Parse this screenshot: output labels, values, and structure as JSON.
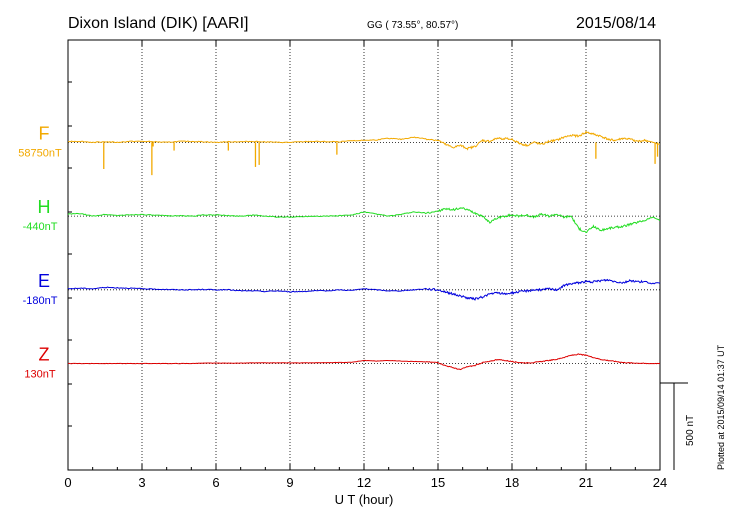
{
  "header": {
    "station": "Dixon Island (DIK)  [AARI]",
    "coords": "GG ( 73.55°,  80.57°)",
    "date": "2015/08/14"
  },
  "plotted_note": "Plotted at 2015/09/14 01:37 UT",
  "scale_label": "500 nT",
  "colors": {
    "F": "#f2a900",
    "H": "#22dd22",
    "E": "#0000dd",
    "Z": "#dd0000"
  },
  "chart_data": {
    "type": "line",
    "title": "",
    "xlabel": "U T (hour)",
    "ylabel": "",
    "xlim": [
      0,
      24
    ],
    "ylim_nT": [
      -1600,
      500
    ],
    "x_ticks": [
      0,
      3,
      6,
      9,
      12,
      15,
      18,
      21,
      24
    ],
    "x_tick_labels": [
      "0",
      "3",
      "6",
      "9",
      "12",
      "15",
      "18",
      "21",
      "24"
    ],
    "grid": true,
    "scale_bar_nT": 500,
    "series": [
      {
        "name": "F",
        "baseline": "58750nT",
        "offset_nT": 0,
        "x": [
          0,
          0.5,
          1,
          1.5,
          2,
          2.5,
          3,
          3.5,
          4,
          4.5,
          5,
          5.5,
          6,
          6.5,
          7,
          7.5,
          8,
          8.5,
          9,
          9.5,
          10,
          10.5,
          11,
          11.5,
          12,
          12.5,
          13,
          13.5,
          14,
          14.5,
          15,
          15.3,
          15.6,
          15.9,
          16.2,
          16.5,
          16.8,
          17.1,
          17.4,
          17.7,
          18,
          18.3,
          18.6,
          18.9,
          19.2,
          19.5,
          19.8,
          20.1,
          20.4,
          20.7,
          21,
          21.3,
          21.6,
          21.9,
          22.2,
          22.5,
          22.8,
          23.1,
          23.4,
          23.7,
          24
        ],
        "values": [
          5,
          5,
          0,
          3,
          0,
          5,
          5,
          3,
          0,
          5,
          5,
          3,
          0,
          3,
          3,
          5,
          3,
          0,
          0,
          3,
          5,
          3,
          3,
          8,
          10,
          12,
          20,
          15,
          25,
          18,
          10,
          -10,
          -25,
          -15,
          -30,
          -20,
          10,
          5,
          20,
          18,
          15,
          -5,
          -15,
          0,
          -10,
          5,
          10,
          25,
          35,
          30,
          50,
          40,
          30,
          15,
          10,
          20,
          15,
          5,
          10,
          0,
          -10
        ],
        "spikes": [
          {
            "x": 1.45,
            "value": -130
          },
          {
            "x": 3.4,
            "value": -160
          },
          {
            "x": 3.45,
            "value": -20
          },
          {
            "x": 4.3,
            "value": -40
          },
          {
            "x": 6.5,
            "value": -40
          },
          {
            "x": 7.6,
            "value": -120
          },
          {
            "x": 7.75,
            "value": -110
          },
          {
            "x": 10.9,
            "value": -60
          },
          {
            "x": 21.4,
            "value": -80
          },
          {
            "x": 23.8,
            "value": -105
          },
          {
            "x": 23.9,
            "value": -70
          }
        ]
      },
      {
        "name": "H",
        "baseline": "-440nT",
        "offset_nT": -360,
        "x": [
          0,
          0.5,
          1,
          1.5,
          2,
          2.5,
          3,
          3.5,
          4,
          4.5,
          5,
          5.5,
          6,
          6.5,
          7,
          7.5,
          8,
          8.5,
          9,
          9.5,
          10,
          10.5,
          11,
          11.5,
          12,
          12.5,
          13,
          13.5,
          14,
          14.5,
          15,
          15.3,
          15.6,
          15.9,
          16.2,
          16.5,
          16.8,
          17.1,
          17.4,
          17.7,
          18,
          18.3,
          18.6,
          18.9,
          19.2,
          19.5,
          19.8,
          20.1,
          20.4,
          20.7,
          21,
          21.3,
          21.6,
          21.9,
          22.2,
          22.5,
          22.8,
          23.1,
          23.4,
          23.7,
          24
        ],
        "values": [
          10,
          12,
          0,
          8,
          3,
          6,
          8,
          4,
          2,
          2,
          0,
          5,
          6,
          2,
          0,
          5,
          0,
          -5,
          -5,
          -2,
          0,
          0,
          2,
          5,
          20,
          10,
          0,
          8,
          20,
          15,
          25,
          35,
          30,
          40,
          30,
          15,
          0,
          -30,
          -10,
          0,
          5,
          0,
          5,
          -5,
          10,
          0,
          10,
          -5,
          0,
          -60,
          -80,
          -50,
          -70,
          -60,
          -55,
          -50,
          -40,
          -30,
          -20,
          -5,
          -20
        ]
      },
      {
        "name": "E",
        "baseline": "-180nT",
        "offset_nT": -720,
        "x": [
          0,
          0.5,
          1,
          1.5,
          2,
          2.5,
          3,
          3.5,
          4,
          4.5,
          5,
          5.5,
          6,
          6.5,
          7,
          7.5,
          8,
          8.5,
          9,
          9.5,
          10,
          10.5,
          11,
          11.5,
          12,
          12.5,
          13,
          13.5,
          14,
          14.5,
          15,
          15.3,
          15.6,
          15.9,
          16.2,
          16.5,
          16.8,
          17.1,
          17.4,
          17.7,
          18,
          18.3,
          18.6,
          18.9,
          19.2,
          19.5,
          19.8,
          20.1,
          20.4,
          20.7,
          21,
          21.3,
          21.6,
          21.9,
          22.2,
          22.5,
          22.8,
          23.1,
          23.4,
          23.7,
          24
        ],
        "values": [
          5,
          8,
          5,
          12,
          10,
          8,
          5,
          3,
          2,
          0,
          0,
          2,
          0,
          0,
          -5,
          -5,
          -8,
          -5,
          -10,
          -8,
          -5,
          -5,
          0,
          -3,
          5,
          0,
          -5,
          -5,
          0,
          5,
          0,
          -10,
          -20,
          -30,
          -40,
          -45,
          -35,
          -20,
          -15,
          -20,
          -15,
          -10,
          -5,
          0,
          0,
          5,
          0,
          20,
          30,
          35,
          40,
          38,
          45,
          48,
          40,
          35,
          45,
          40,
          38,
          30,
          35
        ]
      },
      {
        "name": "Z",
        "baseline": "130nT",
        "offset_nT": -1080,
        "x": [
          0,
          0.5,
          1,
          1.5,
          2,
          2.5,
          3,
          3.5,
          4,
          4.5,
          5,
          5.5,
          6,
          6.5,
          7,
          7.5,
          8,
          8.5,
          9,
          9.5,
          10,
          10.5,
          11,
          11.5,
          12,
          12.5,
          13,
          13.5,
          14,
          14.5,
          15,
          15.3,
          15.6,
          15.9,
          16.2,
          16.5,
          16.8,
          17.1,
          17.4,
          17.7,
          18,
          18.3,
          18.6,
          18.9,
          19.2,
          19.5,
          19.8,
          20.1,
          20.4,
          20.7,
          21,
          21.3,
          21.6,
          21.9,
          22.2,
          22.5,
          22.8,
          23.1,
          23.4,
          23.7,
          24
        ],
        "values": [
          0,
          0,
          0,
          0,
          0,
          0,
          0,
          0,
          0,
          0,
          0,
          2,
          2,
          2,
          2,
          3,
          3,
          3,
          3,
          3,
          4,
          4,
          5,
          6,
          15,
          12,
          15,
          12,
          10,
          8,
          5,
          -10,
          -20,
          -30,
          -15,
          -10,
          5,
          10,
          20,
          15,
          10,
          5,
          3,
          5,
          10,
          15,
          20,
          30,
          40,
          45,
          40,
          30,
          20,
          15,
          10,
          5,
          3,
          2,
          0,
          0,
          0
        ]
      }
    ]
  }
}
